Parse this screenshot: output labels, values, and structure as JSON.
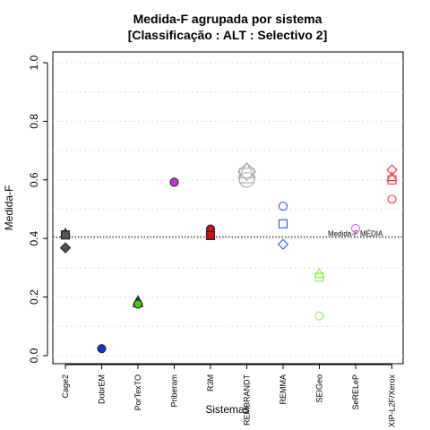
{
  "chart_data": {
    "type": "scatter",
    "title": "Medida-F agrupada por sistema",
    "subtitle": "[Classificação : ALT : Selectivo 2]",
    "xlabel": "Sistemas",
    "ylabel": "Medida-F",
    "ylim": [
      0,
      1.0
    ],
    "yticks": [
      "0.0",
      "0.2",
      "0.4",
      "0.6",
      "0.8",
      "1.0"
    ],
    "grid": "horizontal dotted",
    "categories": [
      "Cage2",
      "DobrEM",
      "PorTexTO",
      "Priberam",
      "R3M",
      "REMBRANDT",
      "REMMA",
      "SEIGeo",
      "SeRELeP",
      "XIP-L2F/Xerox"
    ],
    "reference_line": {
      "label": "Medida-F MÉDIA",
      "value": 0.405
    },
    "series": [
      {
        "category": "Cage2",
        "color": "#555555",
        "filled": true,
        "points": [
          {
            "shape": "circle",
            "y": 0.414
          },
          {
            "shape": "triangle",
            "y": 0.418
          },
          {
            "shape": "square",
            "y": 0.412
          },
          {
            "shape": "diamond",
            "y": 0.368
          }
        ]
      },
      {
        "category": "DobrEM",
        "color": "#1a33dd",
        "filled": true,
        "points": [
          {
            "shape": "circle",
            "y": 0.024
          }
        ]
      },
      {
        "category": "PorTexTO",
        "color": "#44cc11",
        "filled": true,
        "points": [
          {
            "shape": "triangle",
            "y": 0.188
          },
          {
            "shape": "triangle",
            "y": 0.18
          },
          {
            "shape": "circle",
            "y": 0.176
          }
        ]
      },
      {
        "category": "Priberam",
        "color": "#cc33dd",
        "filled": true,
        "points": [
          {
            "shape": "circle",
            "y": 0.592
          }
        ]
      },
      {
        "category": "R3M",
        "color": "#cc1111",
        "filled": true,
        "points": [
          {
            "shape": "circle",
            "y": 0.432
          },
          {
            "shape": "square",
            "y": 0.41
          }
        ]
      },
      {
        "category": "REMBRANDT",
        "color": "#aaaaaa",
        "filled": false,
        "points": [
          {
            "shape": "diamond",
            "y": 0.628
          },
          {
            "shape": "triangle",
            "y": 0.63
          },
          {
            "shape": "square",
            "y": 0.615
          },
          {
            "shape": "circle",
            "y": 0.6
          }
        ]
      },
      {
        "category": "REMMA",
        "color": "#3355ee",
        "filled": false,
        "points": [
          {
            "shape": "circle",
            "y": 0.51
          },
          {
            "shape": "square",
            "y": 0.45
          },
          {
            "shape": "diamond",
            "y": 0.38
          }
        ]
      },
      {
        "category": "SEIGeo",
        "color": "#88ee44",
        "filled": false,
        "points": [
          {
            "shape": "triangle",
            "y": 0.28
          },
          {
            "shape": "square",
            "y": 0.268
          },
          {
            "shape": "circle",
            "y": 0.136
          }
        ]
      },
      {
        "category": "SeRELeP",
        "color": "#ee55ee",
        "filled": false,
        "points": [
          {
            "shape": "circle",
            "y": 0.434
          }
        ]
      },
      {
        "category": "XIP-L2F/Xerox",
        "color": "#ee3344",
        "filled": false,
        "points": [
          {
            "shape": "diamond",
            "y": 0.634
          },
          {
            "shape": "triangle",
            "y": 0.61
          },
          {
            "shape": "square",
            "y": 0.6
          },
          {
            "shape": "circle",
            "y": 0.534
          }
        ]
      }
    ]
  }
}
